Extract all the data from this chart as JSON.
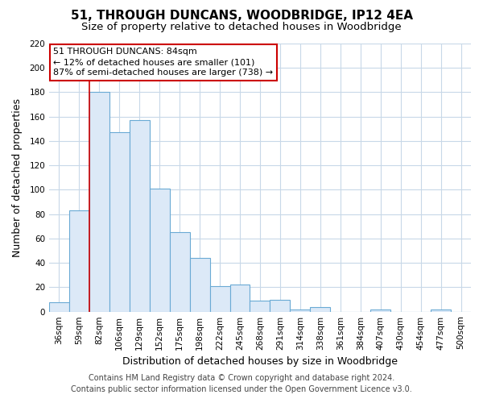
{
  "title": "51, THROUGH DUNCANS, WOODBRIDGE, IP12 4EA",
  "subtitle": "Size of property relative to detached houses in Woodbridge",
  "xlabel": "Distribution of detached houses by size in Woodbridge",
  "ylabel": "Number of detached properties",
  "bar_labels": [
    "36sqm",
    "59sqm",
    "82sqm",
    "106sqm",
    "129sqm",
    "152sqm",
    "175sqm",
    "198sqm",
    "222sqm",
    "245sqm",
    "268sqm",
    "291sqm",
    "314sqm",
    "338sqm",
    "361sqm",
    "384sqm",
    "407sqm",
    "430sqm",
    "454sqm",
    "477sqm",
    "500sqm"
  ],
  "bar_values": [
    8,
    83,
    180,
    147,
    157,
    101,
    65,
    44,
    21,
    22,
    9,
    10,
    2,
    4,
    0,
    0,
    2,
    0,
    0,
    2,
    0
  ],
  "bar_face_color": "#dce9f7",
  "bar_edge_color": "#6aaad4",
  "vline_color": "#cc0000",
  "ylim": [
    0,
    220
  ],
  "yticks": [
    0,
    20,
    40,
    60,
    80,
    100,
    120,
    140,
    160,
    180,
    200,
    220
  ],
  "annotation_title": "51 THROUGH DUNCANS: 84sqm",
  "annotation_line1": "← 12% of detached houses are smaller (101)",
  "annotation_line2": "87% of semi-detached houses are larger (738) →",
  "footer_line1": "Contains HM Land Registry data © Crown copyright and database right 2024.",
  "footer_line2": "Contains public sector information licensed under the Open Government Licence v3.0.",
  "background_color": "#ffffff",
  "grid_color": "#c8d8e8",
  "title_fontsize": 11,
  "subtitle_fontsize": 9.5,
  "axis_label_fontsize": 9,
  "tick_fontsize": 7.5,
  "annotation_fontsize": 8,
  "footer_fontsize": 7
}
